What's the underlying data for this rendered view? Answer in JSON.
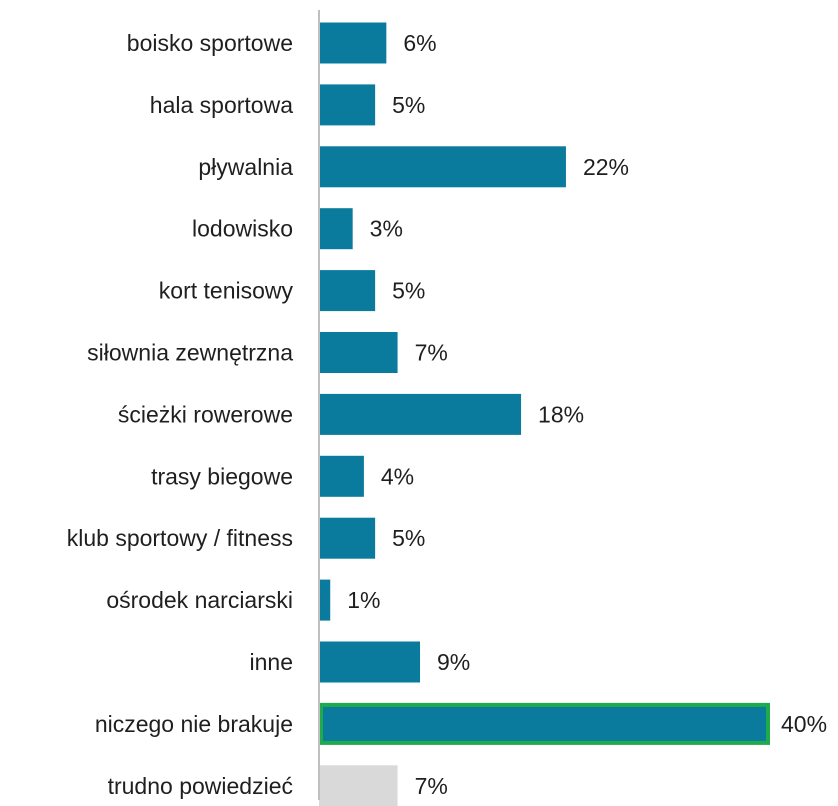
{
  "chart_data": {
    "type": "bar",
    "orientation": "horizontal",
    "categories": [
      "boisko sportowe",
      "hala sportowa",
      "pływalnia",
      "lodowisko",
      "kort tenisowy",
      "siłownia zewnętrzna",
      "ścieżki rowerowe",
      "trasy biegowe",
      "klub sportowy / fitness",
      "ośrodek narciarski",
      "inne",
      "niczego nie brakuje",
      "trudno powiedzieć"
    ],
    "values": [
      6,
      5,
      22,
      3,
      5,
      7,
      18,
      4,
      5,
      1,
      9,
      40,
      7
    ],
    "value_labels": [
      "6%",
      "5%",
      "22%",
      "3%",
      "5%",
      "7%",
      "18%",
      "4%",
      "5%",
      "1%",
      "9%",
      "40%",
      "7%"
    ],
    "unit": "%",
    "xlim": [
      0,
      40
    ],
    "grid": false,
    "title": "",
    "xlabel": "",
    "ylabel": "",
    "colors": {
      "bar": "#0a7b9c",
      "bar_muted": "#d9d9d9",
      "highlight_border": "#1faa4b",
      "axis": "#bfbfbf"
    },
    "highlighted_category": "niczego nie brakuje",
    "muted_category": "trudno powiedzieć"
  }
}
